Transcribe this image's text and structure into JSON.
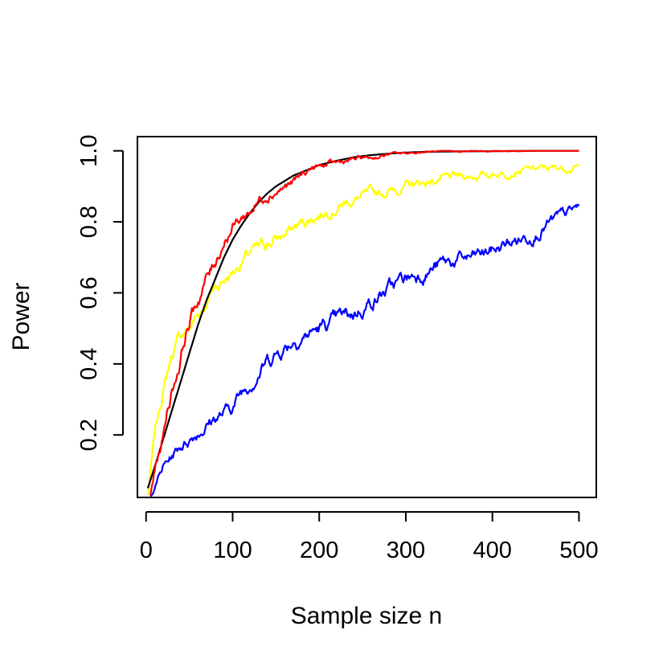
{
  "chart_data": {
    "type": "line",
    "title": "",
    "xlabel": "Sample size n",
    "ylabel": "Power",
    "xlim": [
      -10,
      520
    ],
    "ylim": [
      0.024,
      1.04
    ],
    "xticks": [
      0,
      100,
      200,
      300,
      400,
      500
    ],
    "yticks": [
      0.2,
      0.4,
      0.6,
      0.8,
      1.0
    ],
    "xtick_labels": [
      "0",
      "100",
      "200",
      "300",
      "400",
      "500"
    ],
    "ytick_labels": [
      "0.2",
      "0.4",
      "0.6",
      "0.8",
      "1.0"
    ],
    "grid": false,
    "series": [
      {
        "color": "#000000",
        "style": "smooth",
        "x": [
          2,
          10,
          20,
          30,
          40,
          50,
          60,
          70,
          80,
          90,
          100,
          110,
          120,
          130,
          140,
          150,
          160,
          170,
          180,
          190,
          200,
          220,
          240,
          260,
          280,
          300,
          320,
          350,
          400,
          450,
          500
        ],
        "y": [
          0.05,
          0.11,
          0.19,
          0.27,
          0.35,
          0.43,
          0.51,
          0.58,
          0.64,
          0.7,
          0.75,
          0.79,
          0.825,
          0.855,
          0.88,
          0.9,
          0.915,
          0.93,
          0.94,
          0.95,
          0.96,
          0.972,
          0.982,
          0.988,
          0.992,
          0.995,
          0.997,
          0.998,
          0.999,
          1.0,
          1.0
        ]
      },
      {
        "color": "#ff0000",
        "style": "noisy",
        "x": [
          5,
          10,
          15,
          20,
          25,
          30,
          35,
          40,
          45,
          50,
          55,
          60,
          65,
          70,
          75,
          80,
          85,
          90,
          95,
          100,
          110,
          120,
          130,
          140,
          150,
          160,
          170,
          180,
          190,
          200,
          210,
          220,
          230,
          240,
          250,
          260,
          270,
          280,
          300,
          320,
          350,
          400,
          450,
          500
        ],
        "y": [
          0.03,
          0.1,
          0.15,
          0.2,
          0.28,
          0.33,
          0.37,
          0.42,
          0.48,
          0.52,
          0.55,
          0.58,
          0.61,
          0.64,
          0.66,
          0.69,
          0.72,
          0.75,
          0.77,
          0.79,
          0.81,
          0.83,
          0.86,
          0.88,
          0.89,
          0.9,
          0.91,
          0.93,
          0.95,
          0.955,
          0.96,
          0.965,
          0.97,
          0.975,
          0.98,
          0.98,
          0.985,
          0.99,
          0.993,
          0.997,
          0.998,
          0.999,
          1.0,
          1.0
        ]
      },
      {
        "color": "#ffff00",
        "style": "noisy",
        "x": [
          2,
          10,
          20,
          30,
          40,
          50,
          60,
          70,
          80,
          90,
          100,
          110,
          120,
          130,
          140,
          150,
          170,
          190,
          210,
          230,
          250,
          270,
          300,
          330,
          360,
          400,
          430,
          460,
          500
        ],
        "y": [
          0.03,
          0.2,
          0.33,
          0.43,
          0.48,
          0.5,
          0.54,
          0.58,
          0.62,
          0.64,
          0.66,
          0.69,
          0.71,
          0.72,
          0.74,
          0.75,
          0.78,
          0.81,
          0.835,
          0.855,
          0.87,
          0.88,
          0.9,
          0.915,
          0.925,
          0.935,
          0.945,
          0.95,
          0.955
        ]
      },
      {
        "color": "#0000ff",
        "style": "noisy",
        "x": [
          5,
          10,
          20,
          30,
          40,
          50,
          60,
          70,
          80,
          90,
          100,
          110,
          120,
          130,
          140,
          150,
          160,
          170,
          180,
          190,
          200,
          220,
          240,
          260,
          280,
          300,
          320,
          340,
          360,
          380,
          400,
          420,
          440,
          460,
          480,
          500
        ],
        "y": [
          0.025,
          0.06,
          0.11,
          0.14,
          0.17,
          0.19,
          0.21,
          0.23,
          0.25,
          0.26,
          0.28,
          0.32,
          0.35,
          0.38,
          0.41,
          0.43,
          0.45,
          0.47,
          0.48,
          0.49,
          0.5,
          0.52,
          0.54,
          0.58,
          0.61,
          0.64,
          0.66,
          0.68,
          0.69,
          0.7,
          0.72,
          0.74,
          0.76,
          0.79,
          0.81,
          0.84
        ]
      }
    ]
  }
}
